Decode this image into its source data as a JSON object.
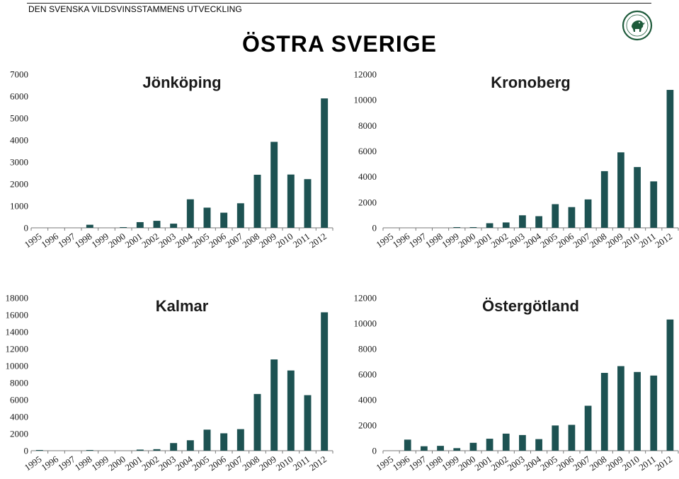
{
  "header": {
    "text": "DEN SVENSKA VILDSVINSSTAMMENS UTVECKLING",
    "title": "ÖSTRA SVERIGE"
  },
  "colors": {
    "bar": "#1d5252",
    "axis": "#7a7a7a"
  },
  "logo_icon": "boar-seal-icon",
  "chart_data": [
    {
      "type": "bar",
      "title": "Jönköping",
      "categories": [
        "1995",
        "1996",
        "1997",
        "1998",
        "1999",
        "2000",
        "2001",
        "2002",
        "2003",
        "2004",
        "2005",
        "2006",
        "2007",
        "2008",
        "2009",
        "2010",
        "2011",
        "2012"
      ],
      "values": [
        0,
        0,
        0,
        140,
        0,
        30,
        260,
        320,
        190,
        1300,
        920,
        690,
        1120,
        2420,
        3920,
        2430,
        2220,
        5900
      ],
      "ylim": [
        0,
        7000
      ],
      "yticks": [
        0,
        1000,
        2000,
        3000,
        4000,
        5000,
        6000,
        7000
      ],
      "xlabel": "",
      "ylabel": ""
    },
    {
      "type": "bar",
      "title": "Kronoberg",
      "categories": [
        "1995",
        "1996",
        "1997",
        "1998",
        "1999",
        "2000",
        "2001",
        "2002",
        "2003",
        "2004",
        "2005",
        "2006",
        "2007",
        "2008",
        "2009",
        "2010",
        "2011",
        "2012"
      ],
      "values": [
        0,
        0,
        0,
        0,
        30,
        30,
        360,
        420,
        980,
        910,
        1850,
        1620,
        2220,
        4430,
        5900,
        4750,
        3630,
        10780
      ],
      "ylim": [
        0,
        12000
      ],
      "yticks": [
        0,
        2000,
        4000,
        6000,
        8000,
        10000,
        12000
      ],
      "xlabel": "",
      "ylabel": ""
    },
    {
      "type": "bar",
      "title": "Kalmar",
      "categories": [
        "1995",
        "1996",
        "1997",
        "1998",
        "1999",
        "2000",
        "2001",
        "2002",
        "2003",
        "2004",
        "2005",
        "2006",
        "2007",
        "2008",
        "2009",
        "2010",
        "2011",
        "2012"
      ],
      "values": [
        60,
        0,
        0,
        60,
        0,
        0,
        130,
        180,
        900,
        1230,
        2480,
        2050,
        2540,
        6680,
        10750,
        9450,
        6540,
        16300
      ],
      "ylim": [
        0,
        18000
      ],
      "yticks": [
        0,
        2000,
        4000,
        6000,
        8000,
        10000,
        12000,
        14000,
        16000,
        18000
      ],
      "xlabel": "",
      "ylabel": ""
    },
    {
      "type": "bar",
      "title": "Östergötland",
      "categories": [
        "1995",
        "1996",
        "1997",
        "1998",
        "1999",
        "2000",
        "2001",
        "2002",
        "2003",
        "2004",
        "2005",
        "2006",
        "2007",
        "2008",
        "2009",
        "2010",
        "2011",
        "2012"
      ],
      "values": [
        0,
        870,
        350,
        380,
        200,
        620,
        940,
        1340,
        1230,
        910,
        1980,
        2030,
        3530,
        6110,
        6640,
        6180,
        5900,
        10300
      ],
      "ylim": [
        0,
        12000
      ],
      "yticks": [
        0,
        2000,
        4000,
        6000,
        8000,
        10000,
        12000
      ],
      "xlabel": "",
      "ylabel": ""
    }
  ]
}
